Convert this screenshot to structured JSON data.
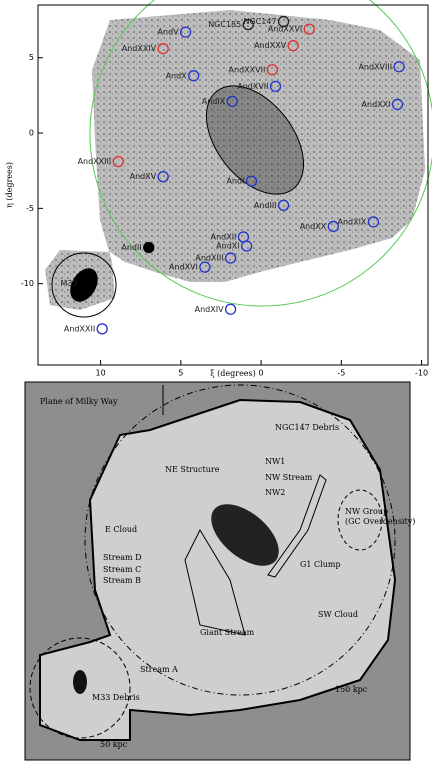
{
  "chart_data": {
    "type": "scatter",
    "xlabel": "ξ (degrees)",
    "ylabel": "η (degrees)",
    "xlim": [
      13.9,
      -10.4
    ],
    "ylim": [
      -15.4,
      8.5
    ],
    "xticks": [
      10,
      5,
      0,
      -5,
      -10
    ],
    "yticks": [
      5,
      0,
      -5,
      -10
    ],
    "points": [
      {
        "label": "NGC185",
        "x": 0.8,
        "y": 7.2,
        "color": "#222222"
      },
      {
        "label": "NGC147",
        "x": -1.4,
        "y": 7.4,
        "color": "#222222"
      },
      {
        "label": "AndXXVI",
        "x": -3.0,
        "y": 6.9,
        "color": "#d33"
      },
      {
        "label": "AndV",
        "x": 4.7,
        "y": 6.7,
        "color": "#2233cc"
      },
      {
        "label": "AndXXV",
        "x": -2.0,
        "y": 5.8,
        "color": "#d33"
      },
      {
        "label": "AndXXIV",
        "x": 6.1,
        "y": 5.6,
        "color": "#d33"
      },
      {
        "label": "AndXVIII",
        "x": -8.6,
        "y": 4.4,
        "color": "#2233cc"
      },
      {
        "label": "AndX",
        "x": 4.2,
        "y": 3.8,
        "color": "#2233cc"
      },
      {
        "label": "AndXXVII",
        "x": -0.7,
        "y": 4.2,
        "color": "#d33"
      },
      {
        "label": "AndXVII",
        "x": -0.9,
        "y": 3.1,
        "color": "#2233cc"
      },
      {
        "label": "AndIX",
        "x": 1.8,
        "y": 2.1,
        "color": "#2233cc"
      },
      {
        "label": "AndXXI",
        "x": -8.5,
        "y": 1.9,
        "color": "#2233cc"
      },
      {
        "label": "AndXXIII",
        "x": 8.9,
        "y": -1.9,
        "color": "#d33"
      },
      {
        "label": "AndXV",
        "x": 6.1,
        "y": -2.9,
        "color": "#2233cc"
      },
      {
        "label": "AndI",
        "x": 0.6,
        "y": -3.2,
        "color": "#2233cc"
      },
      {
        "label": "AndIII",
        "x": -1.4,
        "y": -4.8,
        "color": "#2233cc"
      },
      {
        "label": "AndXX",
        "x": -4.5,
        "y": -6.2,
        "color": "#2233cc"
      },
      {
        "label": "AndXIX",
        "x": -7.0,
        "y": -5.9,
        "color": "#2233cc"
      },
      {
        "label": "AndXII",
        "x": 1.1,
        "y": -6.9,
        "color": "#2233cc"
      },
      {
        "label": "AndXI",
        "x": 0.9,
        "y": -7.5,
        "color": "#2233cc"
      },
      {
        "label": "AndII",
        "x": 7.0,
        "y": -7.6,
        "color": "#000000"
      },
      {
        "label": "AndXIII",
        "x": 1.9,
        "y": -8.3,
        "color": "#2233cc"
      },
      {
        "label": "AndXVI",
        "x": 3.5,
        "y": -8.9,
        "color": "#2233cc"
      },
      {
        "label": "M33",
        "x": 11.0,
        "y": -10.0,
        "color": "#000000"
      },
      {
        "label": "AndXIV",
        "x": 1.9,
        "y": -11.7,
        "color": "#2233cc"
      },
      {
        "label": "AndXXII",
        "x": 9.9,
        "y": -13.0,
        "color": "#2233cc"
      }
    ]
  },
  "diagram": {
    "labels": [
      "Plane of Milky Way",
      "NGC147 Debris",
      "NE Structure",
      "NW1",
      "NW Stream",
      "NW2",
      "NW Group",
      "(GC Overdensity)",
      "E Cloud",
      "Stream D",
      "Stream C",
      "Stream B",
      "G1 Clump",
      "SW Cloud",
      "Giant Stream",
      "Stream A",
      "M33 Debris",
      "150 kpc",
      "50 kpc"
    ]
  }
}
